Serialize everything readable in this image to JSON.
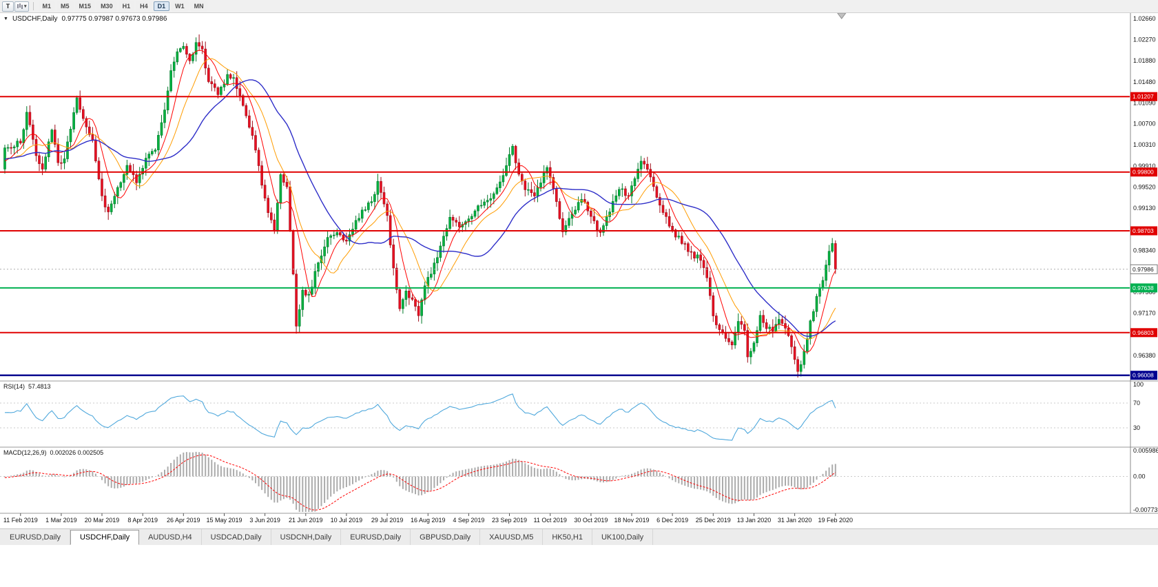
{
  "toolbar": {
    "tool_button_label": "T",
    "timeframes": [
      "M1",
      "M5",
      "M15",
      "M30",
      "H1",
      "H4",
      "D1",
      "W1",
      "MN"
    ],
    "active_timeframe": "D1"
  },
  "tab_bar": {
    "tabs": [
      {
        "label": "EURUSD,Daily",
        "active": false
      },
      {
        "label": "USDCHF,Daily",
        "active": true
      },
      {
        "label": "AUDUSD,H4",
        "active": false
      },
      {
        "label": "USDCAD,Daily",
        "active": false
      },
      {
        "label": "USDCNH,Daily",
        "active": false
      },
      {
        "label": "EURUSD,Daily",
        "active": false
      },
      {
        "label": "GBPUSD,Daily",
        "active": false
      },
      {
        "label": "XAUUSD,M5",
        "active": false
      },
      {
        "label": "HK50,H1",
        "active": false
      },
      {
        "label": "UK100,Daily",
        "active": false
      }
    ]
  },
  "colors": {
    "background": "#ffffff",
    "candle_up": "#00b140",
    "candle_up_border": "#007a2a",
    "candle_down": "#e81123",
    "candle_down_border": "#9e0b17",
    "level_red": "#e00000",
    "level_green": "#00b050",
    "level_blue": "#000090",
    "macd_histogram": "#ababab",
    "macd_signal": "#ff0000",
    "axis_text": "#111111"
  },
  "chart_data": {
    "type": "candlestick",
    "symbol": "USDCHF",
    "timeframe": "Daily",
    "symbol_timeframe_label": "USDCHF,Daily",
    "header_ohlc": "0.97775 0.97987 0.97673 0.97986",
    "ohlc_current": {
      "open": 0.97775,
      "high": 0.97987,
      "low": 0.97673,
      "close": 0.97986
    },
    "y_range": [
      0.9594,
      1.027
    ],
    "y_axis_labels": [
      "1.02660",
      "1.02270",
      "1.01880",
      "1.01480",
      "1.01090",
      "1.00700",
      "1.00310",
      "0.99910",
      "0.99520",
      "0.99130",
      "0.98730",
      "0.98340",
      "0.97950",
      "0.97560",
      "0.97170",
      "0.96780",
      "0.96380"
    ],
    "x_tick_labels": [
      "11 Feb 2019",
      "1 Mar 2019",
      "20 Mar 2019",
      "8 Apr 2019",
      "26 Apr 2019",
      "15 May 2019",
      "3 Jun 2019",
      "21 Jun 2019",
      "10 Jul 2019",
      "29 Jul 2019",
      "16 Aug 2019",
      "4 Sep 2019",
      "23 Sep 2019",
      "11 Oct 2019",
      "30 Oct 2019",
      "18 Nov 2019",
      "6 Dec 2019",
      "25 Dec 2019",
      "13 Jan 2020",
      "31 Jan 2020",
      "19 Feb 2020"
    ],
    "first_tick_bar": 5,
    "bars_per_tick": 13,
    "total_bars": 266,
    "close_waypoints": [
      [
        0,
        1.0025
      ],
      [
        5,
        1.0035
      ],
      [
        7,
        1.0092
      ],
      [
        10,
        1.001
      ],
      [
        12,
        0.9985
      ],
      [
        15,
        1.0058
      ],
      [
        17,
        0.9998
      ],
      [
        19,
        1.0005
      ],
      [
        21,
        1.006
      ],
      [
        23,
        1.0118
      ],
      [
        25,
        1.008
      ],
      [
        28,
        1.004
      ],
      [
        31,
        0.9935
      ],
      [
        33,
        0.9905
      ],
      [
        36,
        0.9952
      ],
      [
        39,
        0.9992
      ],
      [
        42,
        0.996
      ],
      [
        45,
        1.0005
      ],
      [
        48,
        1.0022
      ],
      [
        51,
        1.0095
      ],
      [
        53,
        1.017
      ],
      [
        55,
        1.0205
      ],
      [
        57,
        1.0215
      ],
      [
        59,
        1.0188
      ],
      [
        61,
        1.0222
      ],
      [
        63,
        1.021
      ],
      [
        65,
        1.0148
      ],
      [
        68,
        1.0125
      ],
      [
        71,
        1.0162
      ],
      [
        73,
        1.0155
      ],
      [
        76,
        1.0105
      ],
      [
        79,
        1.0048
      ],
      [
        82,
        0.9955
      ],
      [
        84,
        0.9905
      ],
      [
        86,
        0.9872
      ],
      [
        88,
        0.9976
      ],
      [
        90,
        0.9952
      ],
      [
        92,
        0.979
      ],
      [
        93,
        0.9692
      ],
      [
        95,
        0.976
      ],
      [
        97,
        0.9752
      ],
      [
        100,
        0.981
      ],
      [
        103,
        0.9858
      ],
      [
        106,
        0.9868
      ],
      [
        109,
        0.9852
      ],
      [
        112,
        0.989
      ],
      [
        115,
        0.991
      ],
      [
        117,
        0.9925
      ],
      [
        119,
        0.9962
      ],
      [
        121,
        0.992
      ],
      [
        122,
        0.9898
      ],
      [
        124,
        0.98
      ],
      [
        126,
        0.9725
      ],
      [
        128,
        0.9758
      ],
      [
        130,
        0.9742
      ],
      [
        132,
        0.9712
      ],
      [
        134,
        0.9768
      ],
      [
        136,
        0.979
      ],
      [
        139,
        0.9842
      ],
      [
        142,
        0.9896
      ],
      [
        145,
        0.9878
      ],
      [
        148,
        0.9892
      ],
      [
        151,
        0.9918
      ],
      [
        154,
        0.9928
      ],
      [
        157,
        0.995
      ],
      [
        160,
        0.9992
      ],
      [
        162,
        1.0028
      ],
      [
        164,
        0.9975
      ],
      [
        166,
        0.9948
      ],
      [
        169,
        0.9935
      ],
      [
        171,
        0.996
      ],
      [
        173,
        0.9988
      ],
      [
        175,
        0.995
      ],
      [
        178,
        0.9868
      ],
      [
        181,
        0.9902
      ],
      [
        184,
        0.9928
      ],
      [
        187,
        0.9898
      ],
      [
        190,
        0.9868
      ],
      [
        193,
        0.9905
      ],
      [
        196,
        0.9948
      ],
      [
        199,
        0.9935
      ],
      [
        201,
        0.9968
      ],
      [
        203,
        1.0
      ],
      [
        205,
        0.9985
      ],
      [
        207,
        0.9952
      ],
      [
        210,
        0.9905
      ],
      [
        213,
        0.9872
      ],
      [
        216,
        0.9846
      ],
      [
        219,
        0.983
      ],
      [
        222,
        0.9815
      ],
      [
        224,
        0.9782
      ],
      [
        226,
        0.9712
      ],
      [
        228,
        0.9685
      ],
      [
        230,
        0.967
      ],
      [
        232,
        0.9658
      ],
      [
        234,
        0.9702
      ],
      [
        236,
        0.9685
      ],
      [
        237,
        0.9635
      ],
      [
        239,
        0.9662
      ],
      [
        241,
        0.9712
      ],
      [
        243,
        0.9688
      ],
      [
        245,
        0.9682
      ],
      [
        247,
        0.9705
      ],
      [
        249,
        0.9688
      ],
      [
        251,
        0.9655
      ],
      [
        253,
        0.9608
      ],
      [
        255,
        0.9645
      ],
      [
        257,
        0.9702
      ],
      [
        259,
        0.9748
      ],
      [
        261,
        0.9778
      ],
      [
        263,
        0.9832
      ],
      [
        264,
        0.9846
      ],
      [
        265,
        0.9799
      ]
    ],
    "levels": [
      {
        "label": "1.01207",
        "value": 1.01207,
        "color": "#e00000",
        "width": 2,
        "type": "resistance"
      },
      {
        "label": "0.99800",
        "value": 0.998,
        "color": "#e00000",
        "width": 2,
        "type": "resistance"
      },
      {
        "label": "0.98703",
        "value": 0.98703,
        "color": "#e00000",
        "width": 2,
        "type": "resistance"
      },
      {
        "label": "0.97638",
        "value": 0.97638,
        "color": "#00b050",
        "width": 2,
        "type": "support"
      },
      {
        "label": "0.96803",
        "value": 0.96803,
        "color": "#e00000",
        "width": 2,
        "type": "support"
      },
      {
        "label": "0.96008",
        "value": 0.96008,
        "color": "#000090",
        "width": 2.5,
        "type": "support"
      }
    ],
    "current_price": {
      "label": "0.97986",
      "value": 0.97986
    },
    "moving_averages": [
      {
        "period": 7,
        "color": "#ff0000"
      },
      {
        "period": 14,
        "color": "#ff9c00"
      },
      {
        "period": 30,
        "color": "#2d2dc8"
      }
    ],
    "indicators": {
      "rsi": {
        "name": "RSI(14)",
        "value_label": "57.4813",
        "value": 57.4813,
        "period": 14,
        "levels": [
          100,
          70,
          30
        ],
        "color": "#4fa8dc"
      },
      "macd": {
        "name": "MACD(12,26,9)",
        "values_label": "0.002026 0.002505",
        "macd_value": 0.002026,
        "signal_value": 0.002505,
        "fast": 12,
        "slow": 26,
        "signal": 9,
        "axis_labels": [
          "0.005986",
          "0.00",
          "-0.007731"
        ],
        "axis_values": [
          0.005986,
          0,
          -0.007731
        ]
      }
    }
  }
}
